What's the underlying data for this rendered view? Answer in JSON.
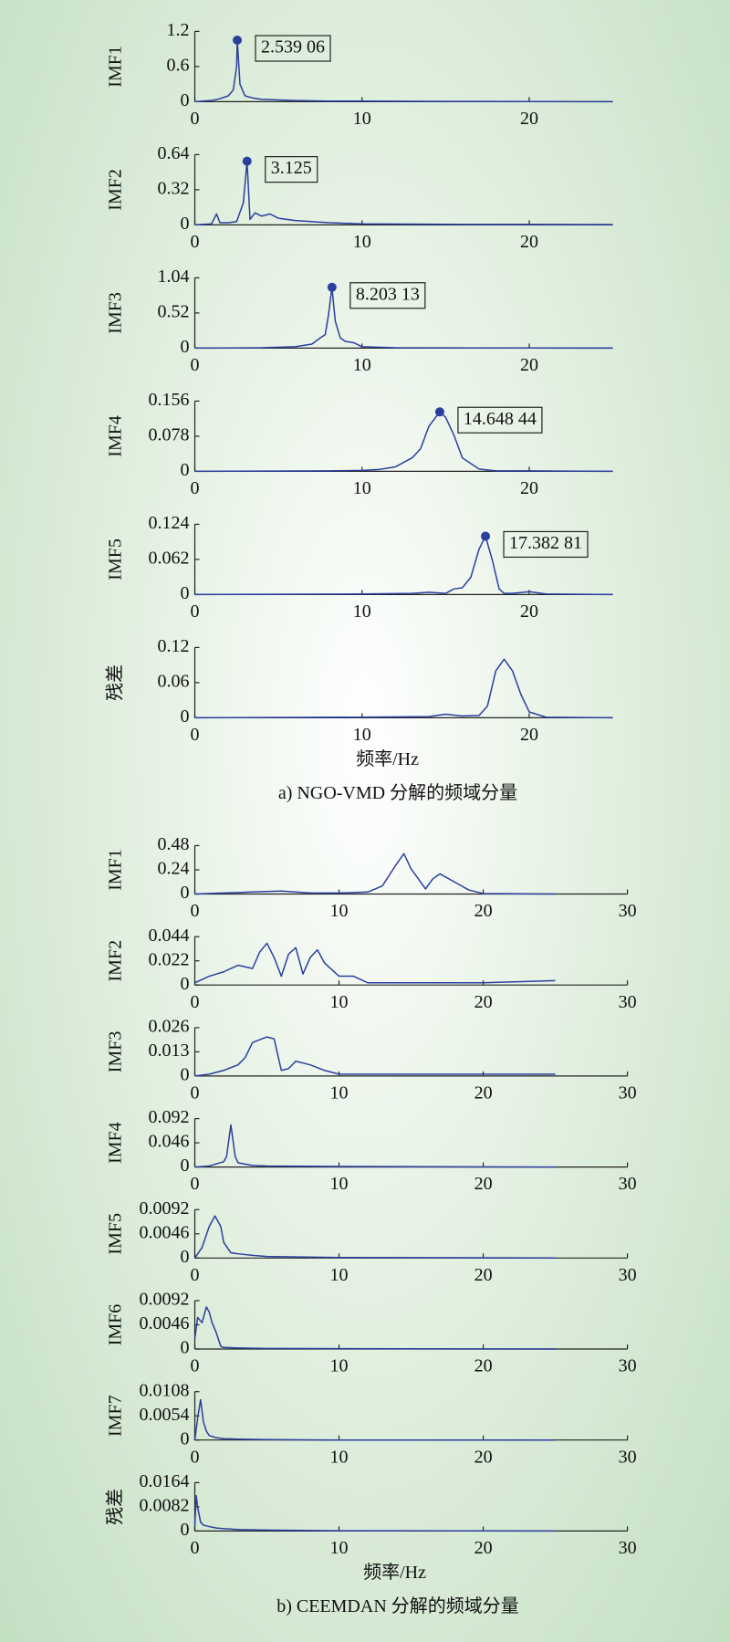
{
  "chart_data": [
    {
      "type": "line",
      "ylabel": "IMF1",
      "xlim": [
        0,
        25
      ],
      "xticks": [
        0,
        10,
        20
      ],
      "ylim": [
        0,
        1.2
      ],
      "yticks": [
        0,
        0.6,
        1.2
      ],
      "x": [
        0,
        1,
        1.5,
        2,
        2.3,
        2.5,
        2.54,
        2.7,
        3,
        3.5,
        4,
        5,
        6,
        8,
        10,
        15,
        20,
        25
      ],
      "series": [
        {
          "color": "#2a3f9e",
          "values": [
            0,
            0.02,
            0.05,
            0.1,
            0.2,
            0.6,
            1.05,
            0.3,
            0.1,
            0.06,
            0.04,
            0.03,
            0.02,
            0.01,
            0.01,
            0.005,
            0.003,
            0
          ]
        }
      ],
      "annotations": [
        {
          "x": 2.53906,
          "y": 1.05,
          "label": "2.539 06"
        }
      ]
    },
    {
      "type": "line",
      "ylabel": "IMF2",
      "xlim": [
        0,
        25
      ],
      "xticks": [
        0,
        10,
        20
      ],
      "ylim": [
        0,
        0.64
      ],
      "yticks": [
        0,
        0.32,
        0.64
      ],
      "x": [
        0,
        1,
        1.3,
        1.5,
        2,
        2.5,
        2.9,
        3.125,
        3.3,
        3.6,
        4,
        4.5,
        5,
        6,
        8,
        10,
        15,
        20,
        25
      ],
      "series": [
        {
          "color": "#2a3f9e",
          "values": [
            0,
            0.01,
            0.1,
            0.02,
            0.02,
            0.03,
            0.2,
            0.58,
            0.05,
            0.11,
            0.08,
            0.1,
            0.06,
            0.04,
            0.02,
            0.01,
            0.005,
            0.004,
            0.003
          ]
        }
      ],
      "annotations": [
        {
          "x": 3.125,
          "y": 0.58,
          "label": "3.125"
        }
      ]
    },
    {
      "type": "line",
      "ylabel": "IMF3",
      "xlim": [
        0,
        25
      ],
      "xticks": [
        0,
        10,
        20
      ],
      "ylim": [
        0,
        1.04
      ],
      "yticks": [
        0,
        0.52,
        1.04
      ],
      "x": [
        0,
        4,
        6,
        7,
        7.5,
        7.8,
        8,
        8.2,
        8.4,
        8.7,
        9,
        9.5,
        10,
        12,
        15,
        20,
        25
      ],
      "series": [
        {
          "color": "#2a3f9e",
          "values": [
            0,
            0.005,
            0.02,
            0.06,
            0.15,
            0.2,
            0.5,
            0.9,
            0.4,
            0.15,
            0.1,
            0.08,
            0.02,
            0.005,
            0.003,
            0.002,
            0
          ]
        }
      ],
      "annotations": [
        {
          "x": 8.20313,
          "y": 0.9,
          "label": "8.203 13"
        }
      ]
    },
    {
      "type": "line",
      "ylabel": "IMF4",
      "xlim": [
        0,
        25
      ],
      "xticks": [
        0,
        10,
        20
      ],
      "ylim": [
        0,
        0.156
      ],
      "yticks": [
        0,
        0.078,
        0.156
      ],
      "x": [
        0,
        8,
        10,
        11,
        12,
        13,
        13.5,
        14,
        14.65,
        15,
        15.5,
        16,
        17,
        18,
        20,
        25
      ],
      "series": [
        {
          "color": "#2a3f9e",
          "values": [
            0,
            0.001,
            0.002,
            0.004,
            0.01,
            0.03,
            0.05,
            0.1,
            0.132,
            0.12,
            0.08,
            0.03,
            0.005,
            0.001,
            0.001,
            0
          ]
        }
      ],
      "annotations": [
        {
          "x": 14.64844,
          "y": 0.132,
          "label": "14.648 44"
        }
      ]
    },
    {
      "type": "line",
      "ylabel": "IMF5",
      "xlim": [
        0,
        25
      ],
      "xticks": [
        0,
        10,
        20
      ],
      "ylim": [
        0,
        0.124
      ],
      "yticks": [
        0,
        0.062,
        0.124
      ],
      "x": [
        0,
        10,
        13,
        14,
        15,
        15.5,
        16,
        16.5,
        17,
        17.38,
        17.8,
        18.2,
        18.5,
        19,
        20,
        21,
        25
      ],
      "series": [
        {
          "color": "#2a3f9e",
          "values": [
            0,
            0.001,
            0.002,
            0.004,
            0.002,
            0.01,
            0.012,
            0.03,
            0.08,
            0.103,
            0.06,
            0.01,
            0.002,
            0.002,
            0.005,
            0.001,
            0
          ]
        }
      ],
      "annotations": [
        {
          "x": 17.38281,
          "y": 0.103,
          "label": "17.382 81"
        }
      ]
    },
    {
      "type": "line",
      "ylabel": "残差",
      "xlim": [
        0,
        25
      ],
      "xticks": [
        0,
        10,
        20
      ],
      "ylim": [
        0,
        0.12
      ],
      "yticks": [
        0,
        0.06,
        0.12
      ],
      "x": [
        0,
        10,
        14,
        15,
        16,
        17,
        17.5,
        18,
        18.5,
        19,
        19.5,
        20,
        21,
        25
      ],
      "series": [
        {
          "color": "#2a3f9e",
          "values": [
            0,
            0.001,
            0.002,
            0.006,
            0.003,
            0.004,
            0.02,
            0.08,
            0.1,
            0.08,
            0.04,
            0.01,
            0.001,
            0
          ]
        }
      ],
      "xlabel": "频率/Hz",
      "caption": "a) NGO-VMD 分解的频域分量"
    },
    {
      "type": "line",
      "ylabel": "IMF1",
      "xlim": [
        0,
        30
      ],
      "xticks": [
        0,
        10,
        20,
        30
      ],
      "ylim": [
        0,
        0.48
      ],
      "yticks": [
        0,
        0.24,
        0.48
      ],
      "x": [
        0,
        2,
        4,
        6,
        8,
        10,
        12,
        13,
        14,
        14.5,
        15,
        16,
        16.5,
        17,
        18,
        19,
        20,
        25
      ],
      "series": [
        {
          "color": "#2a3f9e",
          "values": [
            0,
            0.01,
            0.02,
            0.03,
            0.01,
            0.01,
            0.02,
            0.08,
            0.3,
            0.4,
            0.25,
            0.05,
            0.15,
            0.2,
            0.12,
            0.04,
            0.005,
            0
          ]
        }
      ]
    },
    {
      "type": "line",
      "ylabel": "IMF2",
      "xlim": [
        0,
        30
      ],
      "xticks": [
        0,
        10,
        20,
        30
      ],
      "ylim": [
        0,
        0.044
      ],
      "yticks": [
        0,
        0.022,
        0.044
      ],
      "x": [
        0,
        1,
        2,
        3,
        4,
        4.5,
        5,
        5.5,
        6,
        6.5,
        7,
        7.5,
        8,
        8.5,
        9,
        10,
        11,
        12,
        14,
        20,
        25
      ],
      "series": [
        {
          "color": "#2a3f9e",
          "values": [
            0.002,
            0.008,
            0.012,
            0.018,
            0.015,
            0.03,
            0.038,
            0.025,
            0.008,
            0.028,
            0.034,
            0.01,
            0.025,
            0.032,
            0.02,
            0.008,
            0.008,
            0.002,
            0.002,
            0.002,
            0.004
          ]
        }
      ]
    },
    {
      "type": "line",
      "ylabel": "IMF3",
      "xlim": [
        0,
        30
      ],
      "xticks": [
        0,
        10,
        20,
        30
      ],
      "ylim": [
        0,
        0.026
      ],
      "yticks": [
        0,
        0.013,
        0.026
      ],
      "x": [
        0,
        1,
        2,
        3,
        3.5,
        4,
        5,
        5.5,
        6,
        6.5,
        7,
        8,
        9,
        10,
        12,
        20,
        25
      ],
      "series": [
        {
          "color": "#2a3f9e",
          "values": [
            0,
            0.001,
            0.003,
            0.006,
            0.01,
            0.018,
            0.021,
            0.02,
            0.003,
            0.004,
            0.008,
            0.006,
            0.003,
            0.001,
            0.001,
            0.001,
            0.001
          ]
        }
      ]
    },
    {
      "type": "line",
      "ylabel": "IMF4",
      "xlim": [
        0,
        30
      ],
      "xticks": [
        0,
        10,
        20,
        30
      ],
      "ylim": [
        0,
        0.092
      ],
      "yticks": [
        0,
        0.046,
        0.092
      ],
      "x": [
        0,
        1,
        2,
        2.2,
        2.5,
        2.8,
        3,
        4,
        5,
        10,
        25
      ],
      "series": [
        {
          "color": "#2a3f9e",
          "values": [
            0,
            0.002,
            0.01,
            0.02,
            0.08,
            0.02,
            0.008,
            0.003,
            0.002,
            0.001,
            0
          ]
        }
      ]
    },
    {
      "type": "line",
      "ylabel": "IMF5",
      "xlim": [
        0,
        30
      ],
      "xticks": [
        0,
        10,
        20,
        30
      ],
      "ylim": [
        0,
        0.0092
      ],
      "yticks": [
        0,
        0.0046,
        0.0092
      ],
      "x": [
        0,
        0.5,
        1,
        1.4,
        1.8,
        2,
        2.5,
        3,
        4,
        5,
        10,
        25
      ],
      "series": [
        {
          "color": "#2a3f9e",
          "values": [
            0,
            0.002,
            0.006,
            0.008,
            0.006,
            0.003,
            0.001,
            0.0008,
            0.0005,
            0.0003,
            0.0001,
            0
          ]
        }
      ]
    },
    {
      "type": "line",
      "ylabel": "IMF6",
      "xlim": [
        0,
        30
      ],
      "xticks": [
        0,
        10,
        20,
        30
      ],
      "ylim": [
        0,
        0.0092
      ],
      "yticks": [
        0,
        0.0046,
        0.0092
      ],
      "x": [
        0,
        0.2,
        0.5,
        0.8,
        1,
        1.2,
        1.5,
        1.8,
        2,
        3,
        5,
        25
      ],
      "series": [
        {
          "color": "#2a3f9e",
          "values": [
            0.002,
            0.006,
            0.005,
            0.008,
            0.007,
            0.005,
            0.003,
            0.0005,
            0.0003,
            0.0002,
            0.0001,
            0
          ]
        }
      ]
    },
    {
      "type": "line",
      "ylabel": "IMF7",
      "xlim": [
        0,
        30
      ],
      "xticks": [
        0,
        10,
        20,
        30
      ],
      "ylim": [
        0,
        0.0108
      ],
      "yticks": [
        0,
        0.0054,
        0.0108
      ],
      "x": [
        0,
        0.2,
        0.4,
        0.6,
        0.8,
        1,
        1.5,
        2,
        3,
        5,
        10,
        25
      ],
      "series": [
        {
          "color": "#2a3f9e",
          "values": [
            0,
            0.005,
            0.009,
            0.004,
            0.002,
            0.001,
            0.0005,
            0.0003,
            0.0002,
            0.0001,
            0,
            0
          ]
        }
      ]
    },
    {
      "type": "line",
      "ylabel": "残差",
      "xlim": [
        0,
        30
      ],
      "xticks": [
        0,
        10,
        20,
        30
      ],
      "ylim": [
        0,
        0.0164
      ],
      "yticks": [
        0,
        0.0082,
        0.0164
      ],
      "x": [
        0,
        0.1,
        0.2,
        0.4,
        0.6,
        1,
        1.5,
        2,
        3,
        5,
        10,
        25
      ],
      "series": [
        {
          "color": "#2a3f9e",
          "values": [
            0.002,
            0.012,
            0.008,
            0.003,
            0.002,
            0.0015,
            0.001,
            0.0008,
            0.0005,
            0.0003,
            0.0001,
            0
          ]
        }
      ],
      "xlabel": "频率/Hz",
      "caption": "b) CEEMDAN 分解的频域分量"
    }
  ]
}
